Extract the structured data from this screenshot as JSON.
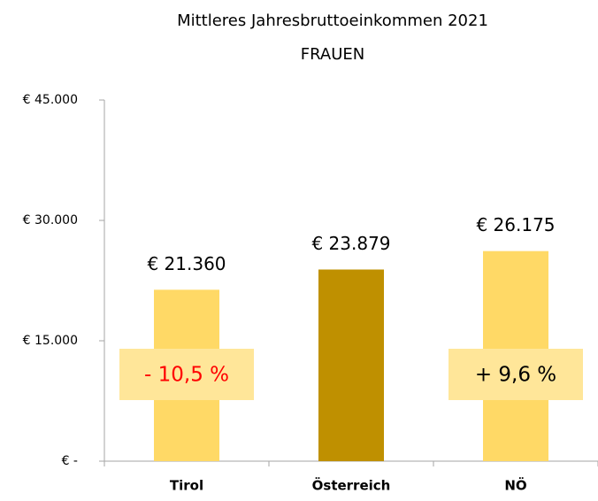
{
  "chart_data": {
    "type": "bar",
    "title": "Mittleres Jahresbruttoeinkommen 2021",
    "subtitle": "FRAUEN",
    "categories": [
      "Tirol",
      "Österreich",
      "NÖ"
    ],
    "values": [
      21360,
      23879,
      26175
    ],
    "value_labels": [
      "€ 21.360",
      "€ 23.879",
      "€ 26.175"
    ],
    "colors": [
      "#ffd966",
      "#bf9000",
      "#ffd966"
    ],
    "ylim": [
      0,
      45000
    ],
    "yticks": [
      {
        "value": 0,
        "label": "€ -"
      },
      {
        "value": 15000,
        "label": "€ 15.000"
      },
      {
        "value": 30000,
        "label": "€ 30.000"
      },
      {
        "value": 45000,
        "label": "€ 45.000"
      }
    ],
    "annotations": [
      {
        "text": "- 10,5 %",
        "category": "Tirol",
        "color": "#ff0000",
        "background": "#ffe699"
      },
      {
        "text": "+ 9,6 %",
        "category": "NÖ",
        "color": "#000000",
        "background": "#ffe699"
      }
    ]
  }
}
